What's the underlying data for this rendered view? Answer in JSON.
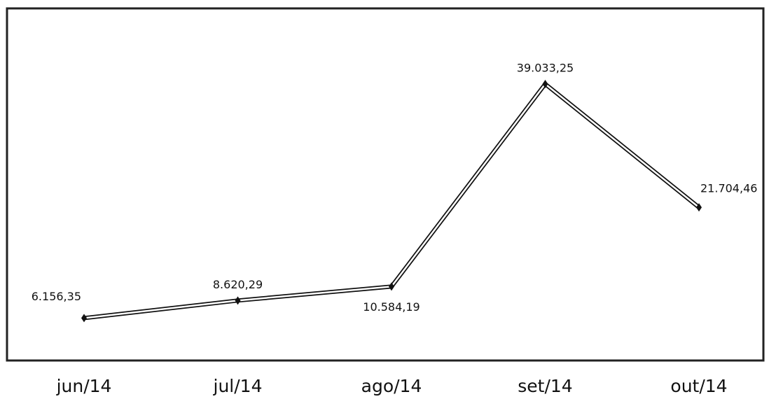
{
  "chart_data": {
    "type": "line",
    "categories": [
      "jun/14",
      "jul/14",
      "ago/14",
      "set/14",
      "out/14"
    ],
    "values": [
      6156.35,
      8620.29,
      10584.19,
      39033.25,
      21704.46
    ],
    "value_labels": [
      "6.156,35",
      "8.620,29",
      "10.584,19",
      "39.033,25",
      "21.704,46"
    ],
    "color": "#111111"
  }
}
